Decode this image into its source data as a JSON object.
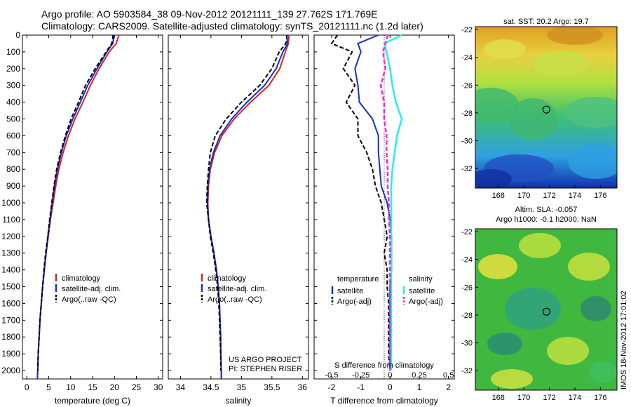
{
  "title_line1": "Argo profile: AO 5903584_38 09-Nov-2012 20121111_139 27.762S 171.769E",
  "title_line2": "Climatology: CARS2009. Satellite-adjusted climatology: synTS_20121111.nc (1.2d later)",
  "credit_line1": "US ARGO PROJECT",
  "credit_line2": "PI: STEPHEN RISER",
  "footer_stamp": "IMOS 18-Nov-2012 17:01:02",
  "colors": {
    "climatology": "#e02020",
    "satellite_T": "#1030d0",
    "argo": "#000000",
    "satellite_S": "#20f0f0",
    "argo_S": "#ff20e0"
  },
  "chart_data": [
    {
      "type": "line",
      "panel": "temperature",
      "xlabel": "temperature (deg C)",
      "ylabel": "",
      "xlim": [
        -1,
        31
      ],
      "ylim": [
        2050,
        0
      ],
      "xticks": [
        0,
        5,
        10,
        15,
        20,
        25,
        30
      ],
      "yticks": [
        0,
        100,
        200,
        300,
        400,
        500,
        600,
        700,
        800,
        900,
        1000,
        1100,
        1200,
        1300,
        1400,
        1500,
        1600,
        1700,
        1800,
        1900,
        2000
      ],
      "legend": [
        "climatology",
        "satellite-adj. clim.",
        "Argo(..raw -QC)"
      ],
      "legend_placement": "lower-center",
      "series": [
        {
          "name": "climatology",
          "style": "solid",
          "color": "#e02020",
          "x": [
            21.0,
            20.4,
            18.8,
            16.5,
            14.5,
            12.8,
            11.0,
            9.5,
            8.3,
            7.3,
            6.6,
            6.0,
            5.4,
            4.9,
            4.4,
            4.0,
            3.6,
            3.3,
            3.0,
            2.8,
            2.6,
            2.5,
            2.4
          ],
          "y": [
            0,
            50,
            100,
            200,
            300,
            400,
            500,
            600,
            700,
            800,
            900,
            1000,
            1100,
            1200,
            1300,
            1400,
            1500,
            1600,
            1700,
            1800,
            1900,
            2000,
            2050
          ]
        },
        {
          "name": "satellite-adj. clim.",
          "style": "solid",
          "color": "#1030d0",
          "x": [
            20.0,
            19.6,
            18.3,
            16.0,
            13.9,
            12.2,
            10.5,
            9.0,
            7.9,
            7.0,
            6.3,
            5.8,
            5.3,
            4.8,
            4.4,
            4.0,
            3.6,
            3.3,
            3.0,
            2.8,
            2.6,
            2.5,
            2.4
          ],
          "y": [
            0,
            50,
            100,
            200,
            300,
            400,
            500,
            600,
            700,
            800,
            900,
            1000,
            1100,
            1200,
            1300,
            1400,
            1500,
            1600,
            1700,
            1800,
            1900,
            2000,
            2050
          ]
        },
        {
          "name": "Argo(..raw -QC)",
          "style": "dashed",
          "color": "#000000",
          "x": [
            19.7,
            19.4,
            18.1,
            15.6,
            13.4,
            11.8,
            10.1,
            8.8,
            7.7,
            6.8,
            6.2,
            5.7,
            5.2,
            4.8,
            4.3,
            3.9,
            3.6,
            3.3,
            3.0,
            2.8,
            2.6,
            2.5
          ],
          "y": [
            0,
            50,
            100,
            200,
            300,
            400,
            500,
            600,
            700,
            800,
            900,
            1000,
            1100,
            1200,
            1300,
            1400,
            1500,
            1600,
            1700,
            1800,
            1900,
            2000
          ]
        }
      ]
    },
    {
      "type": "line",
      "panel": "salinity",
      "xlabel": "salinity",
      "ylabel": "",
      "xlim": [
        33.8,
        36.1
      ],
      "ylim": [
        2050,
        0
      ],
      "xticks": [
        34,
        34.5,
        35,
        35.5,
        36
      ],
      "legend": [
        "climatology",
        "satellite-adj. clim.",
        "Argo(..raw -QC)"
      ],
      "legend_placement": "lower-center",
      "series": [
        {
          "name": "climatology",
          "style": "solid",
          "color": "#e02020",
          "x": [
            35.78,
            35.77,
            35.72,
            35.63,
            35.45,
            35.15,
            34.88,
            34.68,
            34.56,
            34.49,
            34.46,
            34.45,
            34.46,
            34.5,
            34.55,
            34.59,
            34.62,
            34.64,
            34.65,
            34.66,
            34.66,
            34.67,
            34.67
          ],
          "y": [
            0,
            50,
            100,
            200,
            300,
            400,
            500,
            600,
            700,
            800,
            900,
            1000,
            1100,
            1200,
            1300,
            1400,
            1500,
            1600,
            1700,
            1800,
            1900,
            2000,
            2050
          ]
        },
        {
          "name": "satellite-adj. clim.",
          "style": "solid",
          "color": "#1030d0",
          "x": [
            35.74,
            35.76,
            35.68,
            35.57,
            35.38,
            35.09,
            34.84,
            34.65,
            34.54,
            34.48,
            34.45,
            34.44,
            34.46,
            34.5,
            34.55,
            34.59,
            34.62,
            34.64,
            34.65,
            34.66,
            34.66,
            34.67,
            34.67
          ],
          "y": [
            0,
            50,
            100,
            200,
            300,
            400,
            500,
            600,
            700,
            800,
            900,
            1000,
            1100,
            1200,
            1300,
            1400,
            1500,
            1600,
            1700,
            1800,
            1900,
            2000,
            2050
          ]
        },
        {
          "name": "Argo(..raw -QC)",
          "style": "dashed",
          "color": "#000000",
          "x": [
            35.75,
            35.73,
            35.62,
            35.5,
            35.3,
            35.0,
            34.75,
            34.57,
            34.49,
            34.46,
            34.44,
            34.43,
            34.46,
            34.49,
            34.54,
            34.58,
            34.61,
            34.63,
            34.64,
            34.65,
            34.66,
            34.66
          ],
          "y": [
            0,
            50,
            100,
            200,
            300,
            400,
            500,
            600,
            700,
            800,
            900,
            1000,
            1100,
            1200,
            1300,
            1400,
            1500,
            1600,
            1700,
            1800,
            1900,
            2000
          ]
        }
      ]
    },
    {
      "type": "line",
      "panel": "difference",
      "xlabel": "T difference from climatology",
      "xlabel_top": "S difference from climatology",
      "ylabel": "",
      "xlim": [
        -2.6,
        2.2
      ],
      "ylim": [
        2050,
        0
      ],
      "xticks": [
        -2,
        -1,
        0,
        1,
        2
      ],
      "xticks_S": [
        "-0.5",
        "-0.25",
        "0",
        "0.25",
        "0.5"
      ],
      "legend_title_T": "temperature",
      "legend_title_S": "salinity",
      "legend_T": [
        "satellite",
        "Argo(-adj)"
      ],
      "legend_S": [
        "satellite",
        "Argo(-adj)"
      ],
      "legend_placement": "lower-center",
      "series": [
        {
          "name": "satellite",
          "variable": "temperature",
          "style": "solid",
          "color": "#1030d0",
          "x": [
            -0.4,
            -1.1,
            -1.0,
            -1.2,
            -1.1,
            -1.05,
            -0.6,
            -0.4,
            -0.4,
            -0.35,
            -0.3,
            -0.1,
            0,
            0.05,
            0.05,
            0.05,
            0,
            0,
            0,
            0,
            0,
            0
          ],
          "y": [
            0,
            50,
            100,
            200,
            300,
            400,
            500,
            600,
            700,
            800,
            900,
            1000,
            1100,
            1200,
            1300,
            1400,
            1500,
            1600,
            1700,
            1800,
            1900,
            2000
          ]
        },
        {
          "name": "Argo(-adj)",
          "variable": "temperature",
          "style": "dashed",
          "color": "#000000",
          "x": [
            -1.8,
            -2.0,
            -1.3,
            -1.6,
            -1.2,
            -1.5,
            -1.1,
            -1.1,
            -0.8,
            -0.6,
            -0.5,
            -0.3,
            -0.2,
            -0.1,
            -0.2,
            -0.1,
            -0.1,
            -0.05,
            -0.05,
            -0.05,
            -0.05,
            0
          ],
          "y": [
            0,
            50,
            100,
            200,
            300,
            400,
            500,
            600,
            700,
            800,
            900,
            1000,
            1100,
            1200,
            1300,
            1400,
            1500,
            1600,
            1700,
            1800,
            1900,
            2000
          ]
        },
        {
          "name": "satellite",
          "variable": "salinity",
          "style": "solid",
          "color": "#20f0f0",
          "x": [
            0.1,
            -0.05,
            -0.03,
            0.0,
            0.02,
            0.05,
            0.1,
            0.06,
            0.04,
            0.02,
            0.01,
            0.01,
            0.01,
            0.01,
            0.01,
            0.01,
            0.01,
            0.01,
            0.01,
            0.01,
            0.01,
            0.01
          ],
          "y": [
            0,
            50,
            100,
            200,
            300,
            400,
            500,
            600,
            700,
            800,
            900,
            1000,
            1100,
            1200,
            1300,
            1400,
            1500,
            1600,
            1700,
            1800,
            1900,
            2000
          ]
        },
        {
          "name": "Argo(-adj)",
          "variable": "salinity",
          "style": "dashed",
          "color": "#ff20e0",
          "x": [
            -0.02,
            -0.04,
            -0.06,
            -0.04,
            -0.08,
            -0.05,
            -0.05,
            -0.03,
            -0.03,
            -0.02,
            -0.02,
            -0.01,
            -0.01,
            0,
            0,
            0,
            0,
            0,
            0,
            0,
            0,
            0
          ],
          "y": [
            0,
            50,
            100,
            200,
            300,
            400,
            500,
            600,
            700,
            800,
            900,
            1000,
            1100,
            1200,
            1300,
            1400,
            1500,
            1600,
            1700,
            1800,
            1900,
            2000
          ]
        }
      ]
    },
    {
      "type": "heatmap",
      "panel": "sst_map",
      "title": "sat. SST: 20.2  Argo: 19.7",
      "xlim": [
        166.2,
        177.3
      ],
      "ylim": [
        -33.4,
        -21.8
      ],
      "xticks": [
        168,
        170,
        172,
        174,
        176
      ],
      "yticks": [
        -22,
        -24,
        -26,
        -28,
        -30,
        -32
      ],
      "marker": {
        "lon": 171.77,
        "lat": -27.76
      }
    },
    {
      "type": "heatmap",
      "panel": "sla_map",
      "title": "Altim. SLA: -0.057",
      "subtitle": "Argo h1000: -0.1 h2000: NaN",
      "xlim": [
        166.2,
        177.3
      ],
      "ylim": [
        -33.4,
        -21.8
      ],
      "xticks": [
        168,
        170,
        172,
        174,
        176
      ],
      "yticks": [
        -22,
        -24,
        -26,
        -28,
        -30,
        -32
      ],
      "marker": {
        "lon": 171.77,
        "lat": -27.76
      }
    }
  ]
}
